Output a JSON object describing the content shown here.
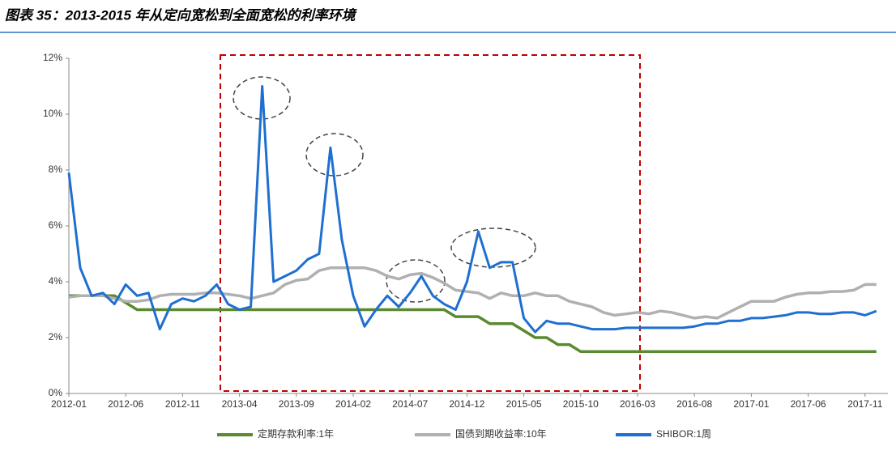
{
  "title": "图表 35：2013-2015 年从定向宽松到全面宽松的利率环境",
  "chart_data": {
    "type": "line",
    "categories": [
      "2012-01",
      null,
      null,
      null,
      null,
      "2012-06",
      null,
      null,
      null,
      null,
      "2012-11",
      null,
      null,
      null,
      null,
      "2013-04",
      null,
      null,
      null,
      null,
      "2013-09",
      null,
      null,
      null,
      null,
      "2014-02",
      null,
      null,
      null,
      null,
      "2014-07",
      null,
      null,
      null,
      null,
      "2014-12",
      null,
      null,
      null,
      null,
      "2015-05",
      null,
      null,
      null,
      null,
      "2015-10",
      null,
      null,
      null,
      null,
      "2016-03",
      null,
      null,
      null,
      null,
      "2016-08",
      null,
      null,
      null,
      null,
      "2017-01",
      null,
      null,
      null,
      null,
      "2017-06",
      null,
      null,
      null,
      null,
      "2017-11",
      null
    ],
    "ylim": [
      0,
      12
    ],
    "yticks": [
      {
        "value": 0,
        "label": "0%"
      },
      {
        "value": 2,
        "label": "2%"
      },
      {
        "value": 4,
        "label": "4%"
      },
      {
        "value": 6,
        "label": "6%"
      },
      {
        "value": 8,
        "label": "8%"
      },
      {
        "value": 10,
        "label": "10%"
      },
      {
        "value": 12,
        "label": "12%"
      }
    ],
    "grid": false,
    "legend": "bottom",
    "series": [
      {
        "name": "定期存款利率:1年",
        "color": "#5a8a2f",
        "values": [
          3.5,
          3.5,
          3.5,
          3.5,
          3.5,
          3.25,
          3,
          3,
          3,
          3,
          3,
          3,
          3,
          3,
          3,
          3,
          3,
          3,
          3,
          3,
          3,
          3,
          3,
          3,
          3,
          3,
          3,
          3,
          3,
          3,
          3,
          3,
          3,
          3,
          2.75,
          2.75,
          2.75,
          2.5,
          2.5,
          2.5,
          2.25,
          2,
          2,
          1.75,
          1.75,
          1.5,
          1.5,
          1.5,
          1.5,
          1.5,
          1.5,
          1.5,
          1.5,
          1.5,
          1.5,
          1.5,
          1.5,
          1.5,
          1.5,
          1.5,
          1.5,
          1.5,
          1.5,
          1.5,
          1.5,
          1.5,
          1.5,
          1.5,
          1.5,
          1.5,
          1.5,
          1.5
        ]
      },
      {
        "name": "国债到期收益率:10年",
        "color": "#b0b0b0",
        "values": [
          3.45,
          3.5,
          3.5,
          3.5,
          3.4,
          3.3,
          3.3,
          3.35,
          3.5,
          3.55,
          3.55,
          3.55,
          3.6,
          3.6,
          3.55,
          3.5,
          3.4,
          3.5,
          3.6,
          3.9,
          4.05,
          4.1,
          4.4,
          4.5,
          4.5,
          4.5,
          4.5,
          4.4,
          4.2,
          4.1,
          4.25,
          4.3,
          4.15,
          3.95,
          3.7,
          3.65,
          3.6,
          3.4,
          3.6,
          3.5,
          3.5,
          3.6,
          3.5,
          3.5,
          3.3,
          3.2,
          3.1,
          2.9,
          2.8,
          2.85,
          2.9,
          2.85,
          2.95,
          2.9,
          2.8,
          2.7,
          2.75,
          2.7,
          2.9,
          3.1,
          3.3,
          3.3,
          3.3,
          3.45,
          3.55,
          3.6,
          3.6,
          3.65,
          3.65,
          3.7,
          3.9,
          3.9
        ]
      },
      {
        "name": "SHIBOR:1周",
        "color": "#1f6fd0",
        "values": [
          7.9,
          4.5,
          3.5,
          3.6,
          3.2,
          3.9,
          3.5,
          3.6,
          2.3,
          3.2,
          3.4,
          3.3,
          3.5,
          3.9,
          3.2,
          3.0,
          3.1,
          11.0,
          4.0,
          4.2,
          4.4,
          4.8,
          5.0,
          8.8,
          5.5,
          3.5,
          2.4,
          3.0,
          3.5,
          3.1,
          3.6,
          4.2,
          3.5,
          3.2,
          3.0,
          4.0,
          5.8,
          4.5,
          4.7,
          4.7,
          2.7,
          2.2,
          2.6,
          2.5,
          2.5,
          2.4,
          2.3,
          2.3,
          2.3,
          2.35,
          2.35,
          2.35,
          2.35,
          2.35,
          2.35,
          2.4,
          2.5,
          2.5,
          2.6,
          2.6,
          2.7,
          2.7,
          2.75,
          2.8,
          2.9,
          2.9,
          2.85,
          2.85,
          2.9,
          2.9,
          2.8,
          2.95
        ]
      }
    ]
  }
}
